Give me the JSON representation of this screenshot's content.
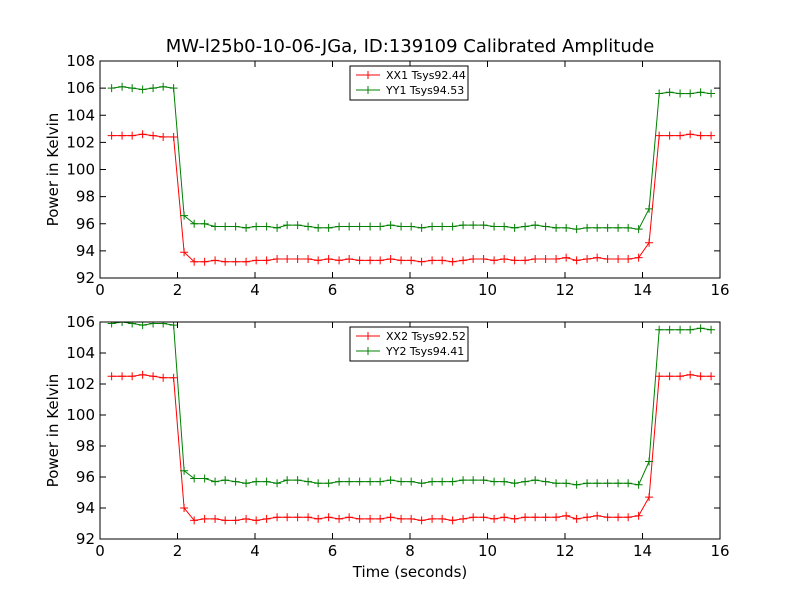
{
  "figure_title": "MW-l25b0-10-06-JGa, ID:139109 Calibrated Amplitude",
  "colors": {
    "red": "#ff0000",
    "green": "#008000",
    "axis": "#000000",
    "background": "#ffffff"
  },
  "chart_data": [
    {
      "type": "line",
      "title": "MW-l25b0-10-06-JGa, ID:139109 Calibrated Amplitude",
      "xlabel": "",
      "ylabel": "Power in Kelvin",
      "xlim": [
        0,
        16
      ],
      "ylim": [
        92,
        108
      ],
      "xticks": [
        0,
        2,
        4,
        6,
        8,
        10,
        12,
        14,
        16
      ],
      "yticks": [
        92,
        94,
        96,
        98,
        100,
        102,
        104,
        106,
        108
      ],
      "legend_position": "top-center",
      "grid": false,
      "x": [
        0.3,
        0.57,
        0.83,
        1.1,
        1.37,
        1.63,
        1.9,
        2.17,
        2.43,
        2.7,
        2.97,
        3.23,
        3.5,
        3.77,
        4.03,
        4.3,
        4.57,
        4.83,
        5.1,
        5.37,
        5.63,
        5.9,
        6.17,
        6.43,
        6.7,
        6.97,
        7.23,
        7.5,
        7.77,
        8.03,
        8.3,
        8.57,
        8.83,
        9.1,
        9.37,
        9.63,
        9.9,
        10.17,
        10.43,
        10.7,
        10.97,
        11.23,
        11.5,
        11.77,
        12.03,
        12.3,
        12.57,
        12.83,
        13.1,
        13.37,
        13.63,
        13.9,
        14.17,
        14.43,
        14.7,
        14.97,
        15.23,
        15.5,
        15.77
      ],
      "series": [
        {
          "name": "XX1 Tsys92.44",
          "color": "#ff0000",
          "values": [
            102.5,
            102.5,
            102.5,
            102.6,
            102.5,
            102.4,
            102.4,
            93.9,
            93.2,
            93.2,
            93.3,
            93.2,
            93.2,
            93.2,
            93.3,
            93.3,
            93.4,
            93.4,
            93.4,
            93.4,
            93.3,
            93.4,
            93.3,
            93.4,
            93.3,
            93.3,
            93.3,
            93.4,
            93.3,
            93.3,
            93.2,
            93.3,
            93.3,
            93.2,
            93.3,
            93.4,
            93.4,
            93.3,
            93.4,
            93.3,
            93.3,
            93.4,
            93.4,
            93.4,
            93.5,
            93.3,
            93.4,
            93.5,
            93.4,
            93.4,
            93.4,
            93.5,
            94.6,
            102.5,
            102.5,
            102.5,
            102.6,
            102.5,
            102.5
          ]
        },
        {
          "name": "YY1 Tsys94.53",
          "color": "#008000",
          "values": [
            106.0,
            106.1,
            106.0,
            105.9,
            106.0,
            106.1,
            106.0,
            96.6,
            96.0,
            96.0,
            95.8,
            95.8,
            95.8,
            95.7,
            95.8,
            95.8,
            95.7,
            95.9,
            95.9,
            95.8,
            95.7,
            95.7,
            95.8,
            95.8,
            95.8,
            95.8,
            95.8,
            95.9,
            95.8,
            95.8,
            95.7,
            95.8,
            95.8,
            95.8,
            95.9,
            95.9,
            95.9,
            95.8,
            95.8,
            95.7,
            95.8,
            95.9,
            95.8,
            95.7,
            95.7,
            95.6,
            95.7,
            95.7,
            95.7,
            95.7,
            95.7,
            95.6,
            97.1,
            105.6,
            105.7,
            105.6,
            105.6,
            105.7,
            105.6
          ]
        }
      ]
    },
    {
      "type": "line",
      "title": "",
      "xlabel": "Time (seconds)",
      "ylabel": "Power in Kelvin",
      "xlim": [
        0,
        16
      ],
      "ylim": [
        92,
        106
      ],
      "xticks": [
        0,
        2,
        4,
        6,
        8,
        10,
        12,
        14,
        16
      ],
      "yticks": [
        92,
        94,
        96,
        98,
        100,
        102,
        104,
        106
      ],
      "legend_position": "top-center",
      "grid": false,
      "x": [
        0.3,
        0.57,
        0.83,
        1.1,
        1.37,
        1.63,
        1.9,
        2.17,
        2.43,
        2.7,
        2.97,
        3.23,
        3.5,
        3.77,
        4.03,
        4.3,
        4.57,
        4.83,
        5.1,
        5.37,
        5.63,
        5.9,
        6.17,
        6.43,
        6.7,
        6.97,
        7.23,
        7.5,
        7.77,
        8.03,
        8.3,
        8.57,
        8.83,
        9.1,
        9.37,
        9.63,
        9.9,
        10.17,
        10.43,
        10.7,
        10.97,
        11.23,
        11.5,
        11.77,
        12.03,
        12.3,
        12.57,
        12.83,
        13.1,
        13.37,
        13.63,
        13.9,
        14.17,
        14.43,
        14.7,
        14.97,
        15.23,
        15.5,
        15.77
      ],
      "series": [
        {
          "name": "XX2 Tsys92.52",
          "color": "#ff0000",
          "values": [
            102.5,
            102.5,
            102.5,
            102.6,
            102.5,
            102.4,
            102.4,
            94.0,
            93.2,
            93.3,
            93.3,
            93.2,
            93.2,
            93.3,
            93.2,
            93.3,
            93.4,
            93.4,
            93.4,
            93.4,
            93.3,
            93.4,
            93.3,
            93.4,
            93.3,
            93.3,
            93.3,
            93.4,
            93.3,
            93.3,
            93.2,
            93.3,
            93.3,
            93.2,
            93.3,
            93.4,
            93.4,
            93.3,
            93.4,
            93.3,
            93.4,
            93.4,
            93.4,
            93.4,
            93.5,
            93.3,
            93.4,
            93.5,
            93.4,
            93.4,
            93.4,
            93.5,
            94.7,
            102.5,
            102.5,
            102.5,
            102.6,
            102.5,
            102.5
          ]
        },
        {
          "name": "YY2 Tsys94.41",
          "color": "#008000",
          "values": [
            105.9,
            106.0,
            105.9,
            105.8,
            105.9,
            105.9,
            105.8,
            96.4,
            95.9,
            95.9,
            95.7,
            95.8,
            95.7,
            95.6,
            95.7,
            95.7,
            95.6,
            95.8,
            95.8,
            95.7,
            95.6,
            95.6,
            95.7,
            95.7,
            95.7,
            95.7,
            95.7,
            95.8,
            95.7,
            95.7,
            95.6,
            95.7,
            95.7,
            95.7,
            95.8,
            95.8,
            95.8,
            95.7,
            95.7,
            95.6,
            95.7,
            95.8,
            95.7,
            95.6,
            95.6,
            95.5,
            95.6,
            95.6,
            95.6,
            95.6,
            95.6,
            95.5,
            97.0,
            105.5,
            105.5,
            105.5,
            105.5,
            105.6,
            105.5
          ]
        }
      ]
    }
  ]
}
